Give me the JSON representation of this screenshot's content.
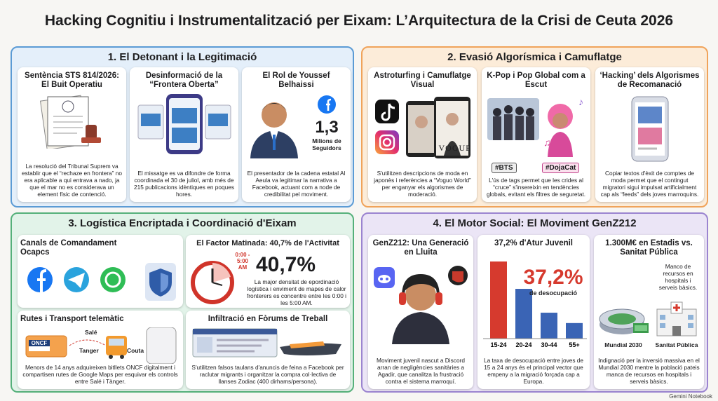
{
  "header": {
    "title": "Hacking Cognitiu i Instrumentalització per Eixam: L’Arquitectura de la Crisi de Ceuta 2026"
  },
  "sections": [
    {
      "title": "1. El Detonant i la Legitimació",
      "cards": [
        {
          "title": "Sentència STS 814/2026: El Buit Operatiu",
          "text": "La resolució del Tribunal Suprem va establir que el “rechaze en frontera” no era aplicable a qui entrava a nado, ja que el mar no es considerava un element físic de contenció."
        },
        {
          "title": "Desinformació de la “Frontera Oberta”",
          "text": "El missatge es va difondre de forma coordinada el 30 de juliol, amb més de 215 publicacions idèntiques en poques hores."
        },
        {
          "title": "El Rol de Youssef Belhaissi",
          "stat": "1,3",
          "stat_label": "Milions de Seguidors",
          "text": "El presentador de la cadena estatal Al Aeula va legitimar la narrativa a Facebook, actuant com a node de credibilitat pel moviment."
        }
      ]
    },
    {
      "title": "2. Evasió Algorísmica i Camuflatge",
      "cards": [
        {
          "title": "Astroturfing i Camuflatge Visual",
          "badge": "VOGUE",
          "text": "S'utilitzen descripcions de moda en japonès i referències a “Voguo World” per enganyar els algorismes de moderació."
        },
        {
          "title": "K-Pop i Pop Global com a Escut",
          "tags": [
            "#BTS",
            "#DojaCat"
          ],
          "text": "L'ús de tags permet que les crides al “cruce” s'insereixin en tendències globals, evitant els filtres de seguretat."
        },
        {
          "title": "‘Hacking’ dels Algorismes de Recomanació",
          "text": "Copiar textos d'èxit de comptes de moda permet que el contingut migratori sigui impulsat artificialment cap als “feeds” dels joves marroquins."
        }
      ]
    },
    {
      "title": "3. Logística Encriptada i Coordinació d'Eixam",
      "cards": [
        {
          "title": "Canals de Comandament Ocapcs"
        },
        {
          "title": "El Factor Matinada: 40,7% de l'Activitat",
          "clock_label": "0:00 - 5:00 AM",
          "stat": "40,7%",
          "text": "La major densitat de epordinació logística i enviment de mapes de calor fronterers es concentre entre les 0:00 i les 5:00 AM."
        },
        {
          "title": "Rutes i Transport telemàtic",
          "ticket": "ONCF",
          "route": [
            "Salé",
            "Tanger",
            "Couta"
          ],
          "text": "Menors de 14 anys adquireixen bitllets ONCF digitalment i compartisen rutes de Google Maps per esquivar els controls entre Salé i Tànger."
        },
        {
          "title": "Infiltració en Fòrums de Treball",
          "text": "S'utilitzen falsos taulans d'anuncis de feina a Facebook per raclutar migrants i organitzar la compra col·lectiva de llanses Zodiac (400 dirhams/persona)."
        }
      ]
    },
    {
      "title": "4. El Motor Social: El Moviment GenZ212",
      "cards": [
        {
          "title": "GenZ212: Una Generació en Lluita",
          "text": "Moviment juvenil nascut a Discord arran de negligències sanitàries a Agadir, que canalitza la frustració contra el sistema marroquí."
        },
        {
          "title": "37,2% d'Atur Juvenil",
          "stat": "37,2%",
          "stat_label": "de desocupació",
          "chart": {
            "type": "bar",
            "categories": [
              "15-24",
              "20-24",
              "30-44",
              "55+"
            ],
            "values": [
              37.2,
              24,
              12.5,
              7.5
            ],
            "colors": [
              "#d63a2e",
              "#3a64b5",
              "#3a64b5",
              "#3a64b5"
            ]
          },
          "text": "La taxa de desocupació entre joves de 15 a 24 anys és el principal vector que empeny a la migració forçada cap a Europa."
        },
        {
          "title": "1.300M€ en Estadis vs. Sanitat Pública",
          "note": "Manco de recursos en hospitals i serveis bàsics.",
          "labels": [
            "Mundial 2030",
            "Sanitat Pública"
          ],
          "text": "Indignació per la inversió massiva en el Mundial 2030 mentre la població pateis manca de recursos en hospitals i serveis bàsics."
        }
      ]
    }
  ],
  "footer": "Gemini Notebook"
}
